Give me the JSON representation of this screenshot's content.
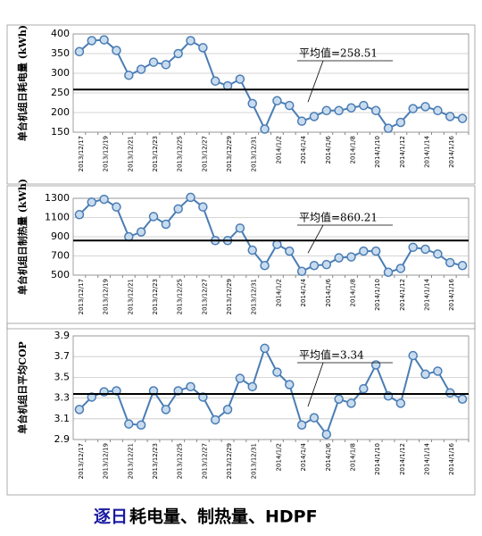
{
  "chart_data": [
    {
      "type": "line",
      "ylabel": "单台机组日耗电量 (kWh)",
      "categories": [
        "2013/12/17",
        null,
        "2013/12/19",
        null,
        "2013/12/21",
        null,
        "2013/12/23",
        null,
        "2013/12/25",
        null,
        "2013/12/27",
        null,
        "2013/12/29",
        null,
        "2013/12/31",
        null,
        "2014/1/2",
        null,
        "2014/1/4",
        null,
        "2014/1/6",
        null,
        "2014/1/8",
        null,
        "2014/1/10",
        null,
        "2014/1/12",
        null,
        "2014/1/14",
        null,
        "2014/1/16",
        null
      ],
      "values": [
        355,
        383,
        385,
        358,
        295,
        310,
        328,
        322,
        350,
        383,
        365,
        280,
        268,
        285,
        223,
        158,
        230,
        218,
        178,
        190,
        205,
        205,
        212,
        218,
        205,
        160,
        175,
        210,
        215,
        205,
        190,
        185
      ],
      "color": "#4a7db4",
      "ylim": [
        150,
        400
      ],
      "yticks": [
        150,
        200,
        250,
        300,
        350,
        400
      ],
      "grid": true,
      "mean": {
        "value": 258.51,
        "label": "平均值=258.51"
      }
    },
    {
      "type": "line",
      "ylabel": "单台机组日制热量 (kWh)",
      "categories": [
        "2013/12/17",
        null,
        "2013/12/19",
        null,
        "2013/12/21",
        null,
        "2013/12/23",
        null,
        "2013/12/25",
        null,
        "2013/12/27",
        null,
        "2013/12/29",
        null,
        "2013/12/31",
        null,
        "2014/1/2",
        null,
        "2014/1/4",
        null,
        "2014/1/6",
        null,
        "2014/1/8",
        null,
        "2014/1/10",
        null,
        "2014/1/12",
        null,
        "2014/1/14",
        null,
        "2014/1/16",
        null
      ],
      "values": [
        1130,
        1260,
        1290,
        1210,
        900,
        950,
        1110,
        1030,
        1190,
        1310,
        1210,
        860,
        860,
        990,
        760,
        600,
        820,
        750,
        540,
        600,
        610,
        680,
        690,
        750,
        750,
        530,
        570,
        790,
        770,
        720,
        630,
        600
      ],
      "color": "#4a7db4",
      "ylim": [
        500,
        1300
      ],
      "yticks": [
        500,
        700,
        900,
        1100,
        1300
      ],
      "grid": true,
      "mean": {
        "value": 860.21,
        "label": "平均值=860.21"
      }
    },
    {
      "type": "line",
      "ylabel": "单台机组日平均COP",
      "categories": [
        "2013/12/17",
        null,
        "2013/12/19",
        null,
        "2013/12/21",
        null,
        "2013/12/23",
        null,
        "2013/12/25",
        null,
        "2013/12/27",
        null,
        "2013/12/29",
        null,
        "2013/12/31",
        null,
        "2014/1/2",
        null,
        "2014/1/4",
        null,
        "2014/1/6",
        null,
        "2014/1/8",
        null,
        "2014/1/10",
        null,
        "2014/1/12",
        null,
        "2014/1/14",
        null,
        "2014/1/16",
        null
      ],
      "values": [
        3.19,
        3.31,
        3.36,
        3.37,
        3.05,
        3.04,
        3.37,
        3.19,
        3.37,
        3.41,
        3.31,
        3.09,
        3.19,
        3.49,
        3.41,
        3.78,
        3.55,
        3.43,
        3.04,
        3.11,
        2.95,
        3.29,
        3.25,
        3.39,
        3.62,
        3.32,
        3.25,
        3.71,
        3.53,
        3.56,
        3.35,
        3.29
      ],
      "color": "#4a7db4",
      "ylim": [
        2.9,
        3.9
      ],
      "yticks": [
        2.9,
        3.1,
        3.3,
        3.5,
        3.7,
        3.9
      ],
      "grid": true,
      "mean": {
        "value": 3.34,
        "label": "平均值=3.34"
      }
    }
  ],
  "caption": {
    "highlight": "逐日",
    "text": "耗电量、制热量、HDPF"
  }
}
